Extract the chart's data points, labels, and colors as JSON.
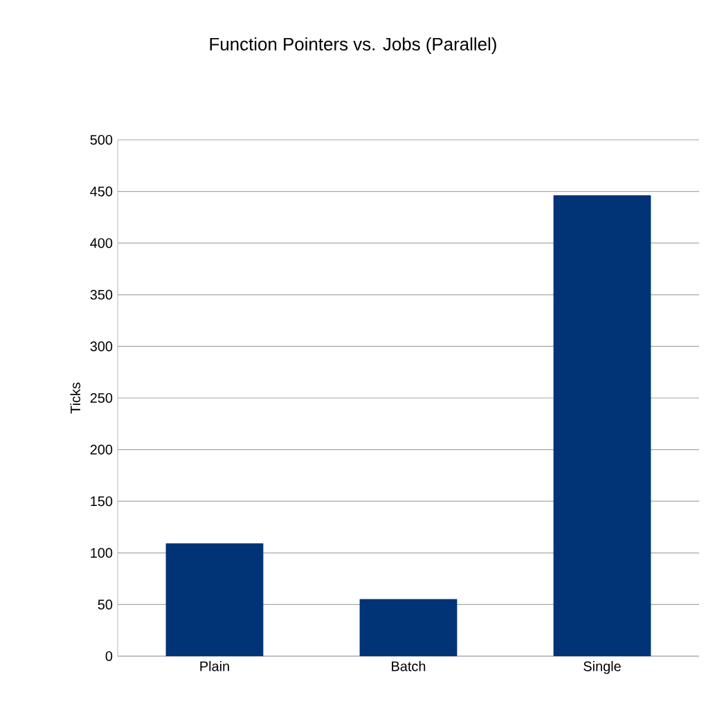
{
  "chart_data": {
    "type": "bar",
    "title": "Function Pointers vs. Jobs (Parallel)",
    "ylabel": "Ticks",
    "categories": [
      "Plain",
      "Batch",
      "Single"
    ],
    "values": [
      109,
      55,
      446
    ],
    "color": "#003476",
    "ylim": [
      0,
      500
    ],
    "yticks": [
      0,
      50,
      100,
      150,
      200,
      250,
      300,
      350,
      400,
      450,
      500
    ],
    "grid": "y"
  }
}
